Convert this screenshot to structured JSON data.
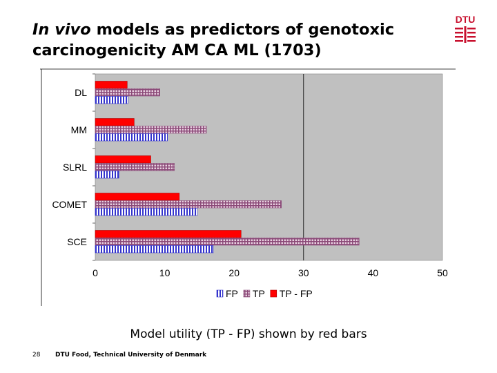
{
  "slide": {
    "title_italic": "In vivo",
    "title_rest": " models as predictors of genotoxic carcinogenicity AM CA ML (1703)",
    "caption": "Model utility (TP - FP) shown by red bars",
    "page_number": "28",
    "footer": "DTU Food, Technical University of Denmark",
    "logo_text": "DTU",
    "logo_color": "#c8102e"
  },
  "chart_data": {
    "type": "bar",
    "orientation": "horizontal",
    "categories": [
      "DL",
      "MM",
      "SLRL",
      "COMET",
      "SCE"
    ],
    "series": [
      {
        "name": "FP",
        "values": [
          4.7,
          10.4,
          3.4,
          14.7,
          17
        ],
        "color": "#3333cc",
        "pattern": "vertical-hatch"
      },
      {
        "name": "TP",
        "values": [
          9.3,
          16,
          11.4,
          26.8,
          38
        ],
        "color": "#a0678f",
        "pattern": "grid-hatch"
      },
      {
        "name": "TP - FP",
        "values": [
          4.6,
          5.6,
          8,
          12.1,
          21
        ],
        "color": "#ff0000",
        "pattern": "solid"
      }
    ],
    "xlim": [
      0,
      50
    ],
    "xticks": [
      0,
      10,
      20,
      30,
      40,
      50
    ],
    "reference_line": 30,
    "plot_background": "#c0c0c0",
    "grid": false,
    "legend": "bottom"
  }
}
